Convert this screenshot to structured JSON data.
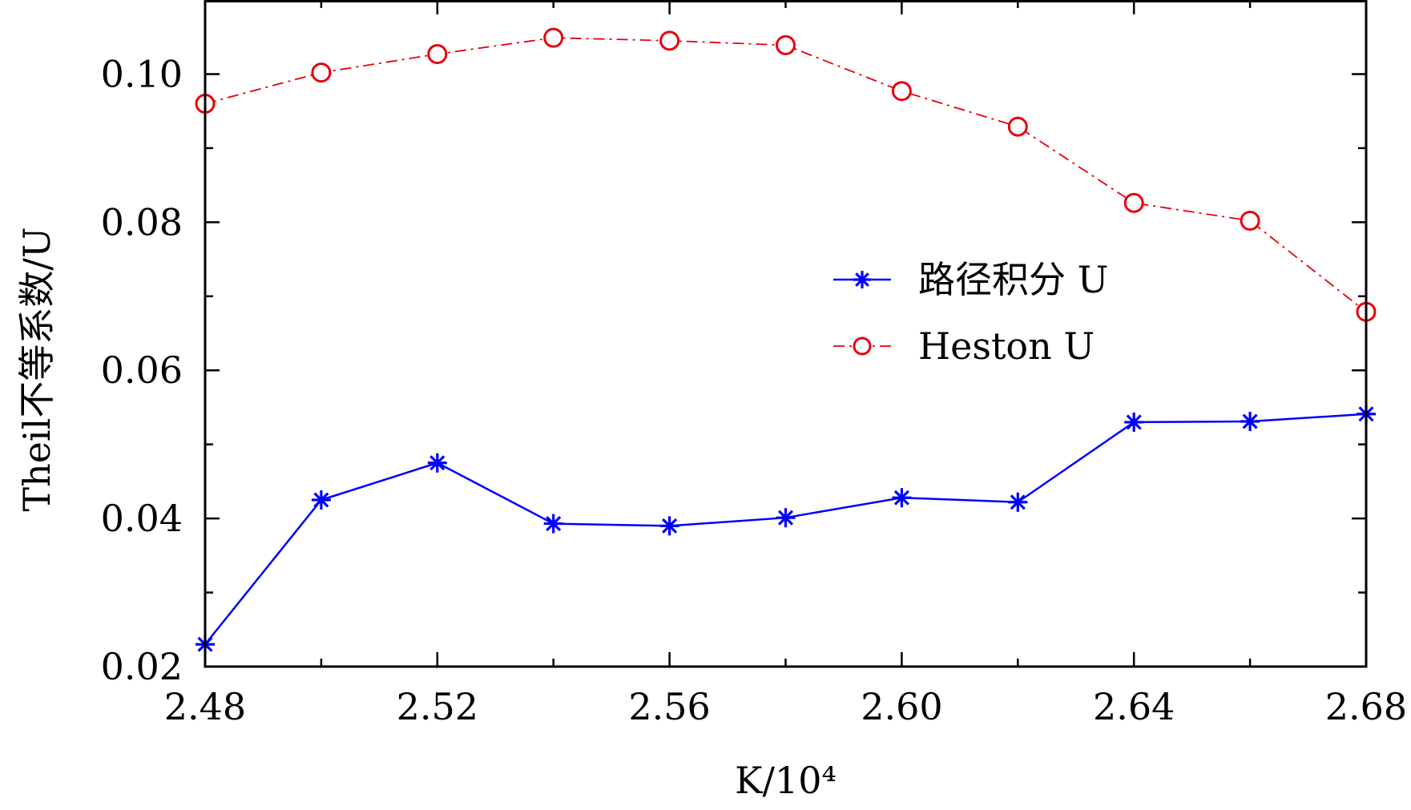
{
  "chart_data": {
    "type": "line",
    "xlabel": "K/10⁴",
    "ylabel": "Theil不等系数/U",
    "xlim": [
      2.48,
      2.68
    ],
    "ylim": [
      0.02,
      0.11
    ],
    "xticks": [
      2.48,
      2.52,
      2.56,
      2.6,
      2.64,
      2.68
    ],
    "xtick_labels": [
      "2.48",
      "2.52",
      "2.56",
      "2.60",
      "2.64",
      "2.68"
    ],
    "yticks": [
      0.02,
      0.04,
      0.06,
      0.08,
      0.1
    ],
    "ytick_labels": [
      "0.02",
      "0.04",
      "0.06",
      "0.08",
      "0.10"
    ],
    "x": [
      2.48,
      2.5,
      2.52,
      2.54,
      2.56,
      2.58,
      2.6,
      2.62,
      2.64,
      2.66,
      2.68
    ],
    "series": [
      {
        "name": "路径积分 U",
        "color": "#0000ff",
        "marker": "asterisk",
        "line_style": "solid",
        "values": [
          0.023,
          0.0425,
          0.0475,
          0.0393,
          0.039,
          0.0401,
          0.0428,
          0.0422,
          0.053,
          0.0531,
          0.0541
        ]
      },
      {
        "name": "Heston U",
        "color": "#e8000b",
        "marker": "circle",
        "line_style": "dash-dot",
        "values": [
          0.096,
          0.1002,
          0.1027,
          0.1049,
          0.1045,
          0.1039,
          0.0977,
          0.0929,
          0.0826,
          0.0802,
          0.0679
        ]
      }
    ],
    "grid": false,
    "legend_position": "center-right"
  }
}
